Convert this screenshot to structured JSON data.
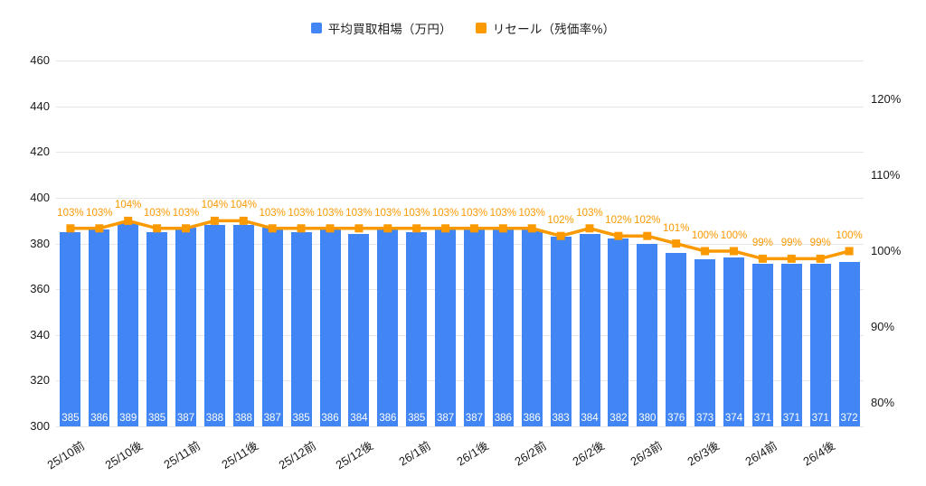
{
  "legend": {
    "bar_label": "平均買取相場（万円）",
    "line_label": "リセール（残価率%）"
  },
  "colors": {
    "bar": "#4285F4",
    "line": "#FB9900",
    "grid": "#E6E6E6",
    "axis_text": "#1a1a1a",
    "bar_value_text": "#FFFFFF",
    "background": "#FFFFFF"
  },
  "chart_data": {
    "type": "bar",
    "subtype": "combo_bar_line",
    "title": "",
    "xlabel": "",
    "ylabel": "",
    "grid": true,
    "legend_position": "top-center",
    "x_labels": [
      "25/10前",
      "25/10後",
      "25/11前",
      "25/11後",
      "25/12前",
      "25/12後",
      "26/1前",
      "26/1後",
      "26/2前",
      "26/2後",
      "26/3前",
      "26/3後",
      "26/4前",
      "26/4後"
    ],
    "x_label_every_n_bars": 2,
    "series": [
      {
        "name": "平均買取相場（万円）",
        "type": "bar",
        "axis": "left",
        "unit": "万円",
        "values": [
          385,
          386,
          389,
          385,
          387,
          388,
          388,
          387,
          385,
          386,
          384,
          386,
          385,
          387,
          387,
          386,
          386,
          383,
          384,
          382,
          380,
          376,
          373,
          374,
          371,
          371,
          371,
          372
        ]
      },
      {
        "name": "リセール（残価率%）",
        "type": "line",
        "axis": "right",
        "unit": "%",
        "values": [
          103,
          103,
          104,
          103,
          103,
          104,
          104,
          103,
          103,
          103,
          103,
          103,
          103,
          103,
          103,
          103,
          103,
          102,
          103,
          102,
          102,
          101,
          100,
          100,
          99,
          99,
          99,
          100
        ]
      }
    ],
    "left_axis": {
      "min": 300,
      "max": 460,
      "step": 20,
      "ticks": [
        "300",
        "320",
        "340",
        "360",
        "380",
        "400",
        "420",
        "440",
        "460"
      ]
    },
    "right_axis": {
      "min": 80,
      "max": 120,
      "step": 10,
      "ticks": [
        "80%",
        "90%",
        "100%",
        "110%",
        "120%"
      ]
    }
  }
}
